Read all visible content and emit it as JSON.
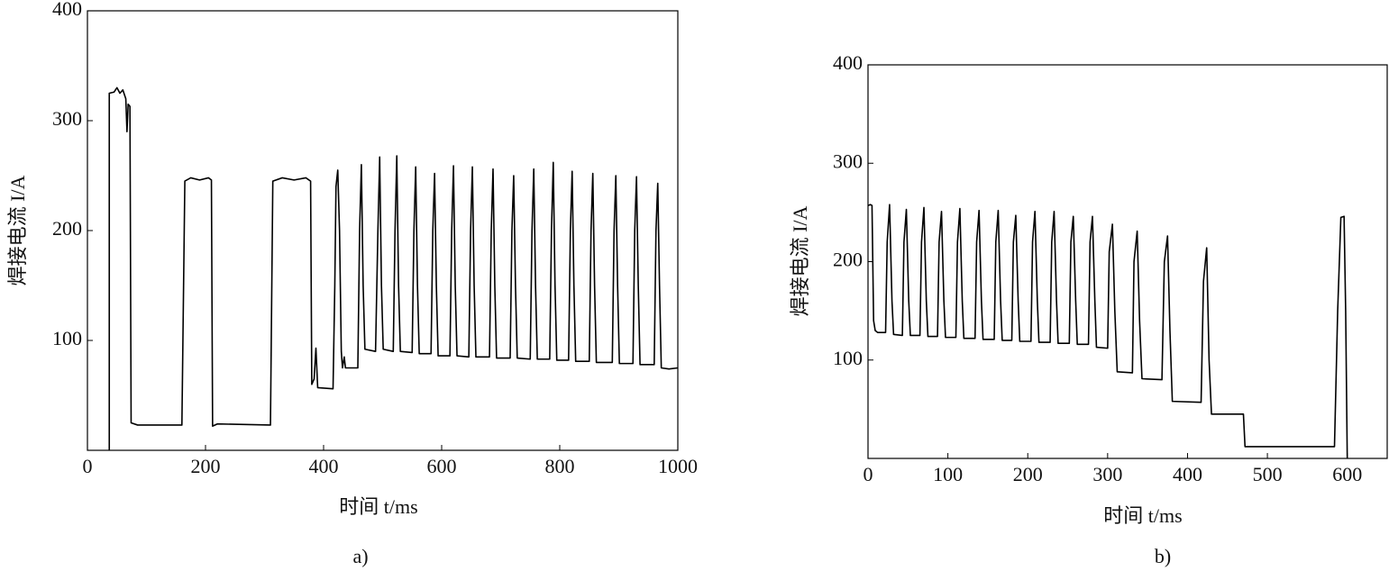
{
  "chart_data": [
    {
      "type": "line",
      "caption": "a)",
      "xlabel": "时间 t/ms",
      "ylabel": "焊接电流 I/A",
      "xlim": [
        0,
        1000
      ],
      "ylim": [
        0,
        400
      ],
      "xticks": [
        0,
        200,
        400,
        600,
        800,
        1000
      ],
      "yticks": [
        100,
        200,
        300,
        400
      ],
      "grid": false,
      "x": [
        37,
        37,
        45,
        50,
        55,
        60,
        65,
        67,
        69,
        72,
        74,
        85,
        160,
        165,
        175,
        190,
        205,
        210,
        212,
        220,
        310,
        314,
        330,
        350,
        370,
        378,
        380,
        384,
        387,
        390,
        416,
        419,
        421,
        424,
        427,
        430,
        432,
        435,
        437,
        458,
        461,
        464,
        467,
        470,
        488,
        492,
        495,
        498,
        501,
        518,
        521,
        524,
        527,
        530,
        550,
        553,
        556,
        559,
        562,
        582,
        585,
        588,
        591,
        594,
        614,
        617,
        620,
        623,
        626,
        646,
        649,
        652,
        655,
        658,
        681,
        684,
        687,
        690,
        693,
        716,
        719,
        722,
        725,
        728,
        750,
        753,
        756,
        759,
        762,
        783,
        786,
        789,
        792,
        795,
        815,
        818,
        821,
        824,
        827,
        850,
        853,
        856,
        859,
        862,
        889,
        892,
        895,
        898,
        901,
        924,
        927,
        930,
        933,
        936,
        960,
        963,
        966,
        969,
        972,
        985,
        1000
      ],
      "series": [
        {
          "color": "#000000",
          "values": [
            0,
            325,
            326,
            330,
            325,
            328,
            320,
            290,
            315,
            313,
            25,
            23,
            23,
            245,
            248,
            246,
            248,
            246,
            22,
            24,
            23,
            245,
            248,
            246,
            248,
            245,
            60,
            65,
            93,
            57,
            56,
            150,
            240,
            255,
            200,
            90,
            75,
            85,
            75,
            75,
            200,
            260,
            150,
            92,
            90,
            200,
            267,
            150,
            92,
            90,
            200,
            268,
            150,
            90,
            89,
            200,
            258,
            150,
            88,
            88,
            200,
            252,
            150,
            86,
            86,
            200,
            259,
            150,
            86,
            85,
            200,
            258,
            150,
            85,
            85,
            200,
            256,
            150,
            84,
            84,
            200,
            250,
            150,
            84,
            83,
            200,
            256,
            150,
            83,
            83,
            200,
            262,
            150,
            82,
            82,
            200,
            254,
            150,
            81,
            81,
            200,
            252,
            150,
            80,
            80,
            200,
            250,
            150,
            79,
            79,
            200,
            249,
            150,
            78,
            78,
            200,
            243,
            150,
            75,
            74,
            75
          ]
        }
      ]
    },
    {
      "type": "line",
      "caption": "b)",
      "xlabel": "时间 t/ms",
      "ylabel": "焊接电流 I/A",
      "xlim": [
        0,
        650
      ],
      "ylim": [
        0,
        400
      ],
      "xticks": [
        0,
        100,
        200,
        300,
        400,
        500,
        600
      ],
      "yticks": [
        100,
        200,
        300,
        400
      ],
      "grid": false,
      "x": [
        0,
        3,
        5,
        7,
        9,
        12,
        22,
        24,
        27,
        30,
        32,
        43,
        45,
        48,
        51,
        53,
        65,
        67,
        70,
        73,
        75,
        87,
        89,
        92,
        95,
        97,
        110,
        112,
        115,
        118,
        120,
        134,
        136,
        139,
        142,
        144,
        158,
        160,
        163,
        166,
        168,
        180,
        182,
        185,
        188,
        190,
        204,
        206,
        209,
        212,
        214,
        228,
        230,
        233,
        236,
        238,
        252,
        254,
        257,
        260,
        262,
        276,
        278,
        281,
        284,
        286,
        300,
        302,
        306,
        309,
        312,
        331,
        333,
        337,
        340,
        343,
        368,
        371,
        375,
        378,
        381,
        417,
        420,
        424,
        427,
        430,
        470,
        472,
        540,
        584,
        588,
        592,
        596,
        598,
        600
      ],
      "series": [
        {
          "color": "#000000",
          "values": [
            257,
            258,
            257,
            140,
            130,
            128,
            128,
            220,
            258,
            160,
            126,
            125,
            220,
            253,
            160,
            125,
            125,
            220,
            255,
            160,
            124,
            124,
            220,
            251,
            160,
            123,
            123,
            220,
            254,
            160,
            122,
            122,
            220,
            252,
            160,
            121,
            121,
            220,
            252,
            160,
            120,
            120,
            220,
            247,
            160,
            119,
            119,
            220,
            251,
            160,
            118,
            118,
            220,
            251,
            160,
            117,
            117,
            220,
            246,
            160,
            116,
            116,
            220,
            246,
            160,
            113,
            112,
            210,
            238,
            150,
            88,
            87,
            200,
            231,
            140,
            81,
            80,
            200,
            226,
            130,
            58,
            57,
            180,
            214,
            100,
            45,
            45,
            12,
            12,
            12,
            150,
            245,
            246,
            150,
            0
          ]
        }
      ]
    }
  ]
}
